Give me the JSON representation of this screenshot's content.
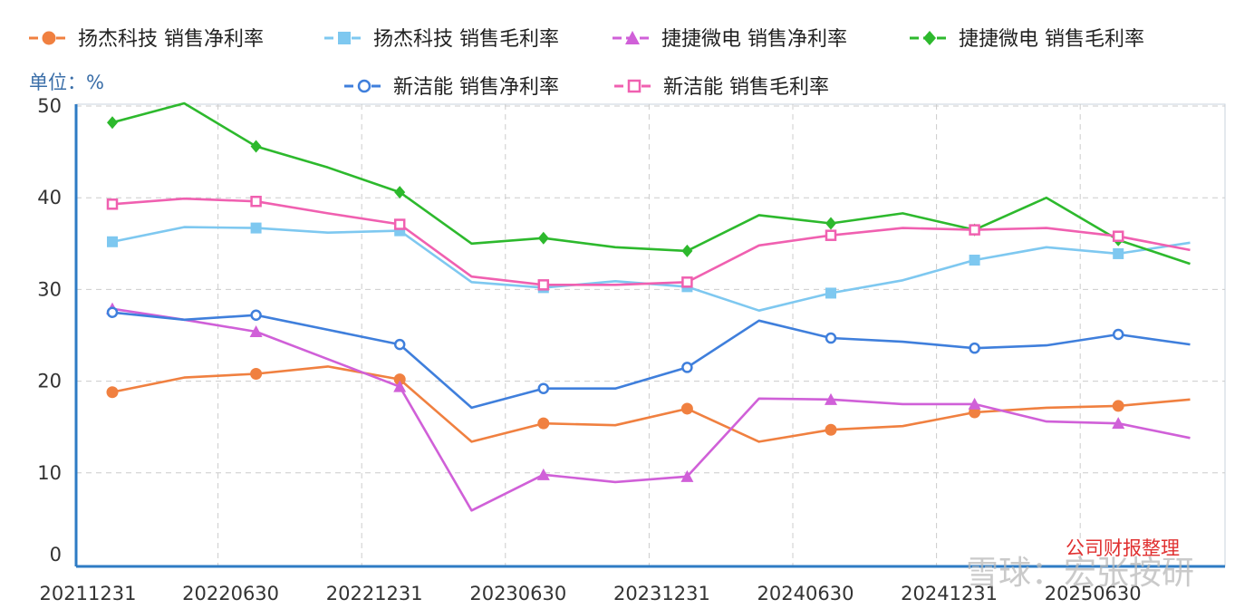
{
  "chart_data": {
    "type": "line",
    "unit_label": "单位：%",
    "source_note": "公司财报整理",
    "watermark": "雪球：宏张按研",
    "x": [
      "20211231",
      "20220331",
      "20220630",
      "20220930",
      "20221231",
      "20230331",
      "20230630",
      "20230930",
      "20231231",
      "20240331",
      "20240630",
      "20240930",
      "20241231",
      "20250331",
      "20250630",
      "20250930"
    ],
    "x_tick_labels": [
      "20211231",
      "20220630",
      "20221231",
      "20230630",
      "20231231",
      "20240630",
      "20241231",
      "20250630"
    ],
    "y_ticks": [
      0,
      10,
      20,
      30,
      40,
      50
    ],
    "ylim": [
      0,
      50
    ],
    "grid": true,
    "legend_position": "top",
    "series": [
      {
        "name": "扬杰科技 销售净利率",
        "color": "#F08040",
        "marker": "circle-filled",
        "values": [
          18.8,
          20.4,
          20.8,
          21.6,
          20.2,
          13.4,
          15.4,
          15.2,
          17.0,
          13.4,
          14.7,
          15.1,
          16.6,
          17.1,
          17.3,
          18.0
        ]
      },
      {
        "name": "扬杰科技 销售毛利率",
        "color": "#7EC8F0",
        "marker": "square-filled",
        "values": [
          35.2,
          36.8,
          36.7,
          36.2,
          36.4,
          30.8,
          30.2,
          30.9,
          30.3,
          27.7,
          29.6,
          31.0,
          33.2,
          34.6,
          33.9,
          35.1
        ]
      },
      {
        "name": "捷捷微电 销售净利率",
        "color": "#D060D8",
        "marker": "triangle-filled",
        "values": [
          27.9,
          26.7,
          25.4,
          22.4,
          19.4,
          5.9,
          9.8,
          9.0,
          9.6,
          18.1,
          18.0,
          17.5,
          17.5,
          15.6,
          15.4,
          13.8
        ]
      },
      {
        "name": "捷捷微电 销售毛利率",
        "color": "#2DB92D",
        "marker": "diamond-filled",
        "values": [
          48.2,
          50.3,
          45.6,
          43.3,
          40.6,
          35.0,
          35.6,
          34.6,
          34.2,
          38.1,
          37.2,
          38.3,
          36.5,
          40.0,
          35.4,
          32.8
        ]
      },
      {
        "name": "新洁能 销售净利率",
        "color": "#3F7FDC",
        "marker": "circle-hollow",
        "values": [
          27.5,
          26.7,
          27.2,
          25.6,
          24.0,
          17.1,
          19.2,
          19.2,
          21.5,
          26.6,
          24.7,
          24.3,
          23.6,
          23.9,
          25.1,
          24.0
        ]
      },
      {
        "name": "新洁能 销售毛利率",
        "color": "#F060B0",
        "marker": "square-hollow",
        "values": [
          39.3,
          39.9,
          39.6,
          38.3,
          37.1,
          31.4,
          30.5,
          30.5,
          30.8,
          34.8,
          35.9,
          36.7,
          36.5,
          36.7,
          35.8,
          34.3
        ]
      }
    ]
  }
}
